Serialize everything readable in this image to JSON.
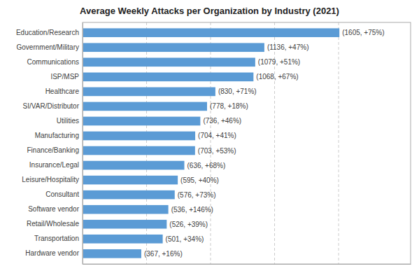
{
  "chart_data": {
    "type": "bar",
    "orientation": "horizontal",
    "title": "Average Weekly Attacks per Organization by Industry (2021)",
    "categories": [
      "Education/Research",
      "Government/Military",
      "Communications",
      "ISP/MSP",
      "Healthcare",
      "SI/VAR/Distributor",
      "Utilities",
      "Manufacturing",
      "Finance/Banking",
      "Insurance/Legal",
      "Leisure/Hospitality",
      "Consultant",
      "Software vendor",
      "Retail/Wholesale",
      "Transportation",
      "Hardware vendor"
    ],
    "values": [
      1605,
      1136,
      1079,
      1068,
      830,
      778,
      736,
      704,
      703,
      636,
      595,
      576,
      536,
      526,
      501,
      367
    ],
    "value_labels": [
      "(1605, +75%)",
      "(1136, +47%)",
      "(1079, +51%)",
      "(1068, +67%)",
      "(830, +71%)",
      "(778, +18%)",
      "(736, +46%)",
      "(704, +41%)",
      "(703, +53%)",
      "(636, +68%)",
      "(595, +40%)",
      "(576, +73%)",
      "(536, +146%)",
      "(526, +39%)",
      "(501, +34%)",
      "(367, +16%)"
    ],
    "data_labels": true,
    "color": "#5b9bd5",
    "xlim": [
      0,
      2050
    ],
    "xticks": [
      400,
      800,
      1200,
      1600
    ],
    "grid": true,
    "tick_labels": "y"
  }
}
